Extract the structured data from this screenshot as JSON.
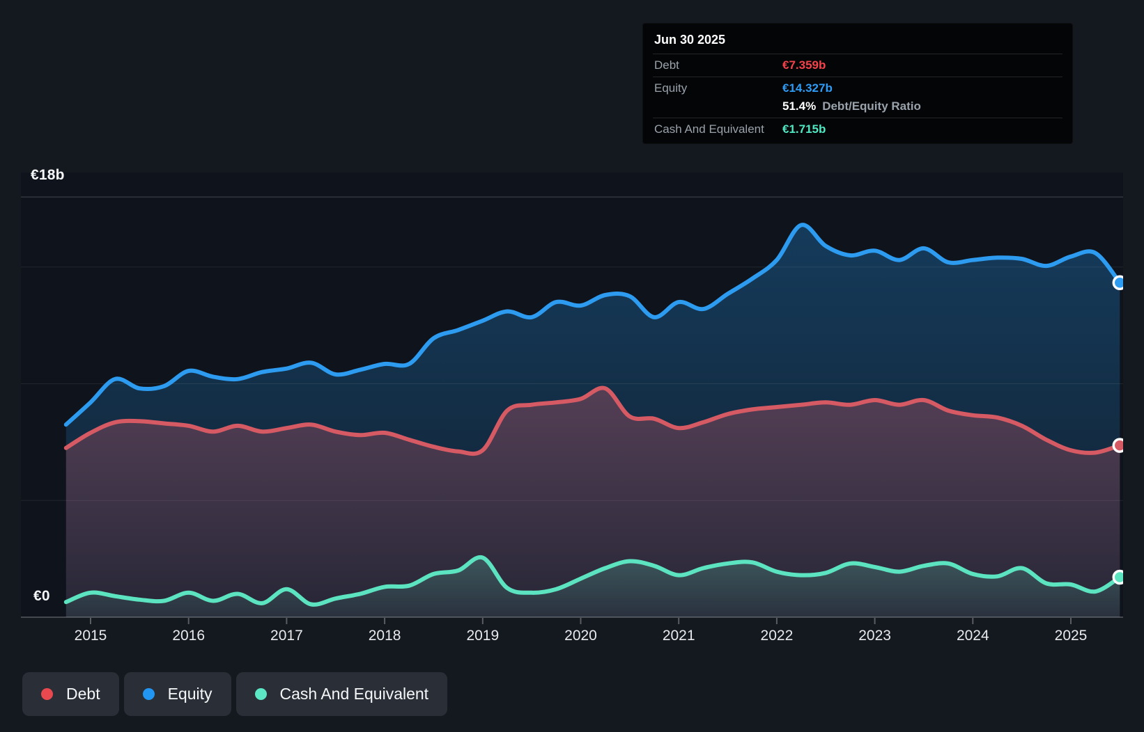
{
  "tooltip": {
    "date": "Jun 30 2025",
    "debt_label": "Debt",
    "debt_value": "€7.359b",
    "equity_label": "Equity",
    "equity_value": "€14.327b",
    "ratio_value": "51.4%",
    "ratio_label": "Debt/Equity Ratio",
    "cash_label": "Cash And Equivalent",
    "cash_value": "€1.715b"
  },
  "y_axis": {
    "top_label": "€18b",
    "zero_label": "€0"
  },
  "legend": {
    "debt": "Debt",
    "equity": "Equity",
    "cash": "Cash And Equivalent"
  },
  "colors": {
    "background": "#14181f",
    "plot_bg": "#0f131b",
    "debt_line": "#d65a63",
    "equity_line": "#2d9bf0",
    "cash_line": "#5ce3c0",
    "debt_value_text": "#f5424b",
    "equity_value_text": "#2e9cf5",
    "cash_value_text": "#4fe9c3",
    "legend_debt_dot": "#e8494f",
    "legend_equity_dot": "#2196f3",
    "legend_cash_dot": "#5ce8c4",
    "axis_text": "#e8eaed"
  },
  "chart_data": {
    "type": "area",
    "title": "",
    "xlabel": "",
    "ylabel": "€ billions",
    "ylim": [
      0,
      18
    ],
    "grid": true,
    "gridline_values": [
      18,
      15,
      10,
      5
    ],
    "x_tick_labels": [
      "2015",
      "2016",
      "2017",
      "2018",
      "2019",
      "2020",
      "2021",
      "2022",
      "2023",
      "2024",
      "2025"
    ],
    "x": [
      2014.75,
      2015.0,
      2015.25,
      2015.5,
      2015.75,
      2016.0,
      2016.25,
      2016.5,
      2016.75,
      2017.0,
      2017.25,
      2017.5,
      2017.75,
      2018.0,
      2018.25,
      2018.5,
      2018.75,
      2019.0,
      2019.25,
      2019.5,
      2019.75,
      2020.0,
      2020.25,
      2020.5,
      2020.75,
      2021.0,
      2021.25,
      2021.5,
      2021.75,
      2022.0,
      2022.25,
      2022.5,
      2022.75,
      2023.0,
      2023.25,
      2023.5,
      2023.75,
      2024.0,
      2024.25,
      2024.5,
      2024.75,
      2025.0,
      2025.25,
      2025.5
    ],
    "series": [
      {
        "name": "Equity",
        "color_key": "equity_line",
        "last_value_label": "€14.327b",
        "values": [
          8.25,
          9.2,
          10.2,
          9.8,
          9.9,
          10.55,
          10.3,
          10.2,
          10.5,
          10.65,
          10.9,
          10.4,
          10.6,
          10.85,
          10.85,
          11.95,
          12.3,
          12.7,
          13.1,
          12.85,
          13.5,
          13.35,
          13.8,
          13.75,
          12.85,
          13.5,
          13.2,
          13.85,
          14.5,
          15.3,
          16.8,
          15.9,
          15.5,
          15.7,
          15.3,
          15.8,
          15.2,
          15.3,
          15.4,
          15.35,
          15.05,
          15.45,
          15.6,
          14.327
        ]
      },
      {
        "name": "Debt",
        "color_key": "debt_line",
        "last_value_label": "€7.359b",
        "values": [
          7.25,
          7.9,
          8.35,
          8.4,
          8.3,
          8.2,
          7.95,
          8.2,
          7.95,
          8.1,
          8.25,
          7.95,
          7.8,
          7.9,
          7.6,
          7.3,
          7.1,
          7.15,
          8.85,
          9.1,
          9.2,
          9.35,
          9.8,
          8.6,
          8.5,
          8.1,
          8.35,
          8.7,
          8.9,
          9.0,
          9.1,
          9.2,
          9.1,
          9.3,
          9.1,
          9.3,
          8.85,
          8.65,
          8.55,
          8.2,
          7.6,
          7.15,
          7.05,
          7.359
        ]
      },
      {
        "name": "Cash And Equivalent",
        "color_key": "cash_line",
        "last_value_label": "€1.715b",
        "values": [
          0.65,
          1.05,
          0.9,
          0.75,
          0.7,
          1.05,
          0.7,
          1.0,
          0.6,
          1.2,
          0.55,
          0.8,
          1.0,
          1.3,
          1.35,
          1.85,
          2.0,
          2.55,
          1.25,
          1.05,
          1.2,
          1.65,
          2.1,
          2.4,
          2.2,
          1.8,
          2.1,
          2.3,
          2.35,
          1.95,
          1.8,
          1.9,
          2.3,
          2.15,
          1.95,
          2.2,
          2.3,
          1.85,
          1.75,
          2.1,
          1.45,
          1.4,
          1.1,
          1.715
        ]
      }
    ],
    "legend_position": "bottom-left"
  }
}
